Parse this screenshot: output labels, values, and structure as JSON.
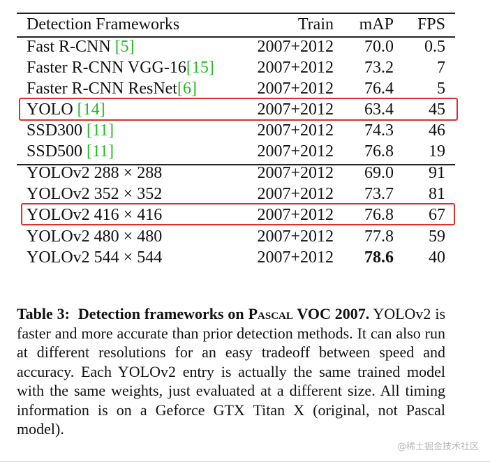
{
  "table": {
    "headers": [
      "Detection Frameworks",
      "Train",
      "mAP",
      "FPS"
    ],
    "rows": [
      {
        "name": "Fast R-CNN ",
        "ref": "[5]",
        "train": "2007+2012",
        "map": "70.0",
        "fps": "0.5"
      },
      {
        "name": "Faster R-CNN VGG-16",
        "ref": "[15]",
        "train": "2007+2012",
        "map": "73.2",
        "fps": "7"
      },
      {
        "name": "Faster R-CNN ResNet",
        "ref": "[6]",
        "train": "2007+2012",
        "map": "76.4",
        "fps": "5"
      },
      {
        "name": "YOLO ",
        "ref": "[14]",
        "train": "2007+2012",
        "map": "63.4",
        "fps": "45"
      },
      {
        "name": "SSD300 ",
        "ref": "[11]",
        "train": "2007+2012",
        "map": "74.3",
        "fps": "46"
      },
      {
        "name": "SSD500 ",
        "ref": "[11]",
        "train": "2007+2012",
        "map": "76.8",
        "fps": "19"
      },
      {
        "name": "YOLOv2 288 × 288",
        "ref": "",
        "train": "2007+2012",
        "map": "69.0",
        "fps": "91"
      },
      {
        "name": "YOLOv2 352 × 352",
        "ref": "",
        "train": "2007+2012",
        "map": "73.7",
        "fps": "81"
      },
      {
        "name": "YOLOv2 416 × 416",
        "ref": "",
        "train": "2007+2012",
        "map": "76.8",
        "fps": "67"
      },
      {
        "name": "YOLOv2 480 × 480",
        "ref": "",
        "train": "2007+2012",
        "map": "77.8",
        "fps": "59"
      },
      {
        "name": "YOLOv2 544 × 544",
        "ref": "",
        "train": "2007+2012",
        "map": "78.6",
        "fps": "40"
      }
    ]
  },
  "caption": {
    "label": "Table 3:",
    "title_pre": "Detection frameworks on ",
    "title_sc": "Pascal",
    "title_post": " VOC 2007.",
    "body": "YOLOv2 is faster and more accurate than prior detection methods. It can also run at different resolutions for an easy tradeoff between speed and accuracy. Each YOLOv2 entry is actually the same trained model with the same weights, just evaluated at a different size. All timing information is on a Geforce GTX Titan X (original, not Pascal model)."
  },
  "watermark": "@稀土掘金技术社区",
  "colors": {
    "highlight": "#d9312b",
    "citation": "#22bb22"
  }
}
